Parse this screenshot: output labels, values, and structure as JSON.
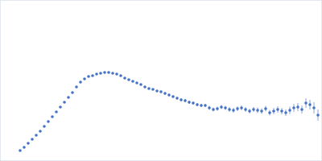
{
  "chart_data": {
    "type": "scatter",
    "color": "#4472c4",
    "grid": true,
    "tick_labels": false,
    "xlim": [
      0,
      400
    ],
    "ylim": [
      0,
      200
    ],
    "xticks": [
      115
    ],
    "yticks": [
      100
    ],
    "x": [
      25,
      30,
      35,
      40,
      45,
      50,
      55,
      60,
      65,
      70,
      75,
      80,
      85,
      90,
      95,
      100,
      105,
      110,
      115,
      120,
      125,
      130,
      135,
      140,
      145,
      150,
      155,
      160,
      165,
      170,
      175,
      180,
      185,
      190,
      195,
      200,
      205,
      210,
      215,
      220,
      225,
      230,
      235,
      240,
      245,
      250,
      255,
      260,
      265,
      270,
      275,
      280,
      285,
      290,
      295,
      300,
      305,
      310,
      315,
      320,
      325,
      330,
      335,
      340,
      345,
      350,
      355,
      360,
      365,
      370,
      375,
      380,
      385,
      390,
      395
    ],
    "values": [
      13,
      17,
      22,
      27,
      32,
      37,
      43,
      49,
      55,
      61,
      67,
      73,
      79,
      85,
      92,
      98,
      102,
      105,
      106,
      108,
      109,
      110,
      110,
      109,
      108,
      106,
      103,
      101,
      99,
      97,
      95,
      92,
      90,
      89,
      87,
      86,
      84,
      82,
      80,
      78,
      76,
      75,
      73,
      72,
      70,
      69,
      69,
      66,
      64,
      65,
      67,
      66,
      64,
      63,
      65,
      66,
      64,
      62,
      64,
      63,
      62,
      65,
      60,
      62,
      64,
      62,
      60,
      63,
      66,
      67,
      64,
      72,
      70,
      66,
      57
    ],
    "errors": [
      0.5,
      0.5,
      0.5,
      0.5,
      0.5,
      0.5,
      0.5,
      0.5,
      0.5,
      0.5,
      0.5,
      0.5,
      0.5,
      0.5,
      0.5,
      0.5,
      0.5,
      0.5,
      0.5,
      0.5,
      0.5,
      0.5,
      0.5,
      0.5,
      0.5,
      0.8,
      0.8,
      0.8,
      0.8,
      0.8,
      1,
      1,
      1,
      1,
      1,
      1.5,
      1.5,
      1.5,
      1.5,
      1.5,
      2,
      2,
      2,
      2,
      2,
      2,
      2,
      2.5,
      2.5,
      2.5,
      2.5,
      2.5,
      3,
      3,
      3,
      3,
      3,
      3,
      3,
      3.5,
      3.5,
      3.5,
      3.5,
      4,
      4,
      4,
      4,
      4.5,
      5,
      5,
      5,
      6,
      6,
      7,
      7
    ]
  }
}
